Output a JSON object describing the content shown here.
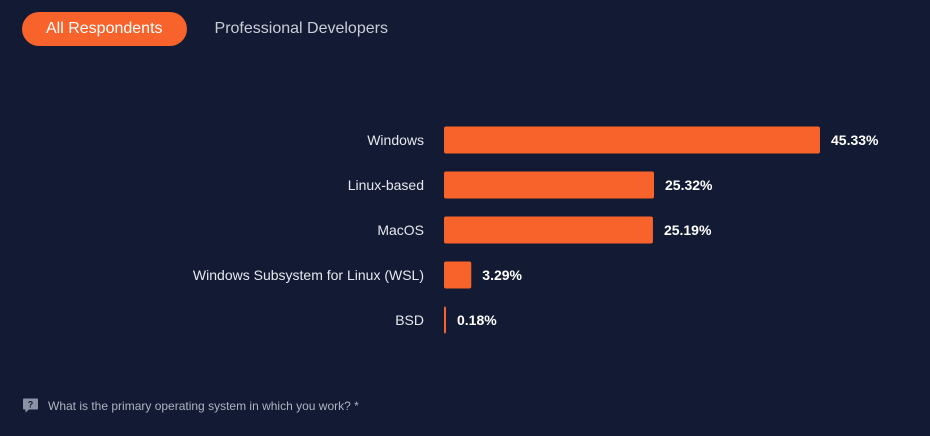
{
  "tabs": [
    {
      "label": "All Respondents",
      "active": true
    },
    {
      "label": "Professional Developers",
      "active": false
    }
  ],
  "footer": {
    "icon": "question-icon",
    "question": "What is the primary operating system in which you work? *"
  },
  "colors": {
    "background": "#131a33",
    "bar": "#f8632b",
    "tab_active": "#f8632b"
  },
  "chart_data": {
    "type": "bar",
    "orientation": "horizontal",
    "categories": [
      "Windows",
      "Linux-based",
      "MacOS",
      "Windows Subsystem for Linux (WSL)",
      "BSD"
    ],
    "values": [
      45.33,
      25.32,
      25.19,
      3.29,
      0.18
    ],
    "value_labels": [
      "45.33%",
      "25.32%",
      "25.19%",
      "3.29%",
      "0.18%"
    ],
    "xlim": [
      0,
      45.33
    ],
    "grid": false,
    "legend": "none"
  }
}
